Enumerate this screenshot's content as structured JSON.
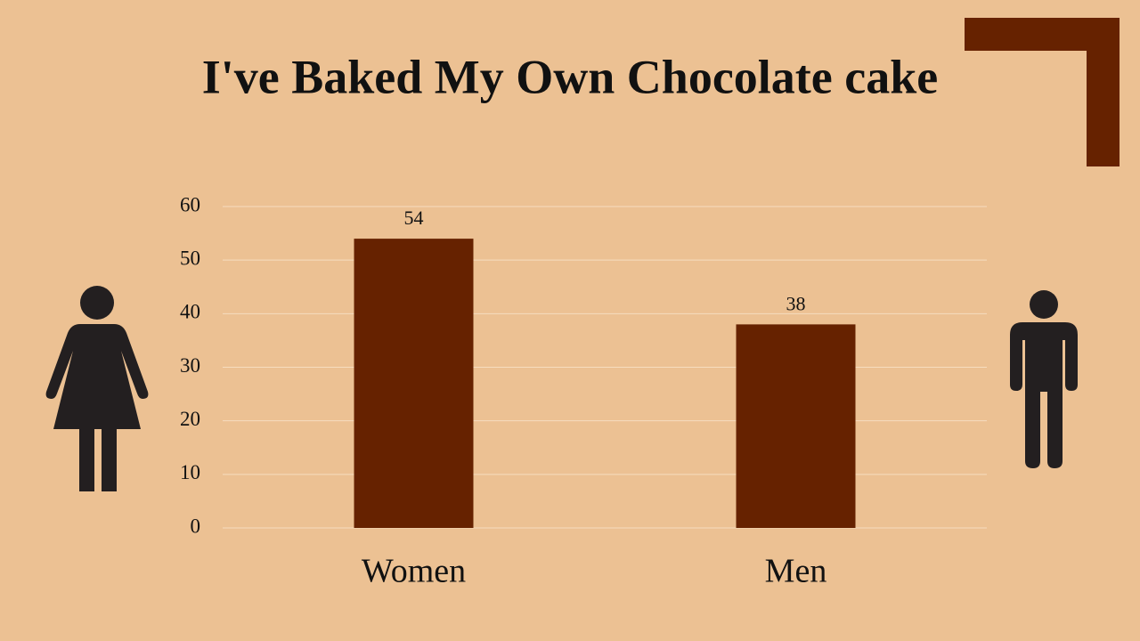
{
  "chart_data": {
    "type": "bar",
    "title": "I've Baked My Own Chocolate cake",
    "categories": [
      "Women",
      "Men"
    ],
    "values": [
      54,
      38
    ],
    "color": "#662200",
    "ylim": [
      0,
      60
    ],
    "yticks": [
      0,
      10,
      20,
      30,
      40,
      50,
      60
    ],
    "grid": true
  }
}
